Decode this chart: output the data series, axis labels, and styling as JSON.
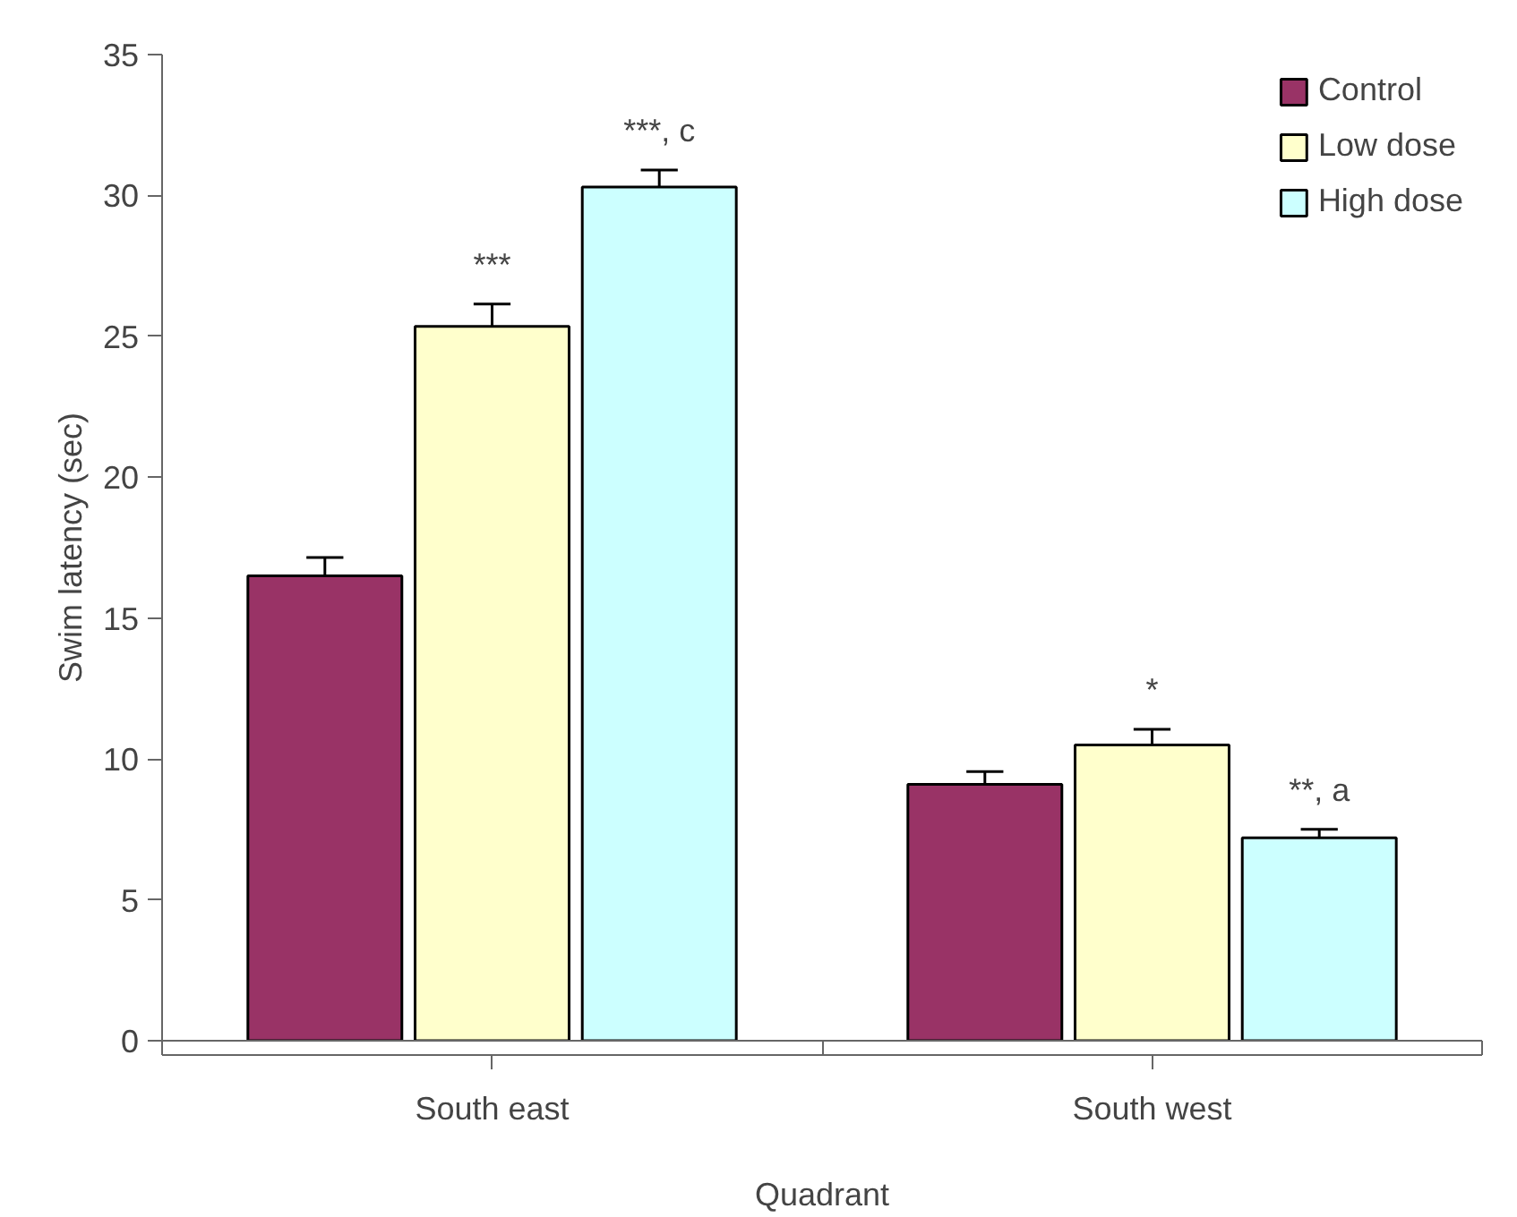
{
  "chart_data": {
    "type": "bar",
    "xlabel": "Quadrant",
    "ylabel": "Swim latency (sec)",
    "categories": [
      "South east",
      "South west"
    ],
    "series": [
      {
        "name": "Control",
        "color": "#993366",
        "values": [
          16.5,
          9.1
        ],
        "errors": [
          [
            16.5,
            17.15
          ],
          [
            9.1,
            9.55
          ]
        ]
      },
      {
        "name": "Low dose",
        "color": "#ffffcc",
        "values": [
          25.35,
          10.5
        ],
        "errors": [
          [
            25.35,
            26.15
          ],
          [
            10.5,
            11.05
          ]
        ]
      },
      {
        "name": "High dose",
        "color": "#ccffff",
        "values": [
          30.3,
          7.2
        ],
        "errors": [
          [
            30.3,
            30.9
          ],
          [
            7.2,
            7.5
          ]
        ]
      }
    ],
    "ylim": [
      0,
      35
    ],
    "yticks": [
      0,
      5,
      10,
      15,
      20,
      25,
      30,
      35
    ],
    "grid": false,
    "legend": "top right",
    "annotations": [
      "***",
      "***, c",
      "*",
      "**, a"
    ]
  }
}
